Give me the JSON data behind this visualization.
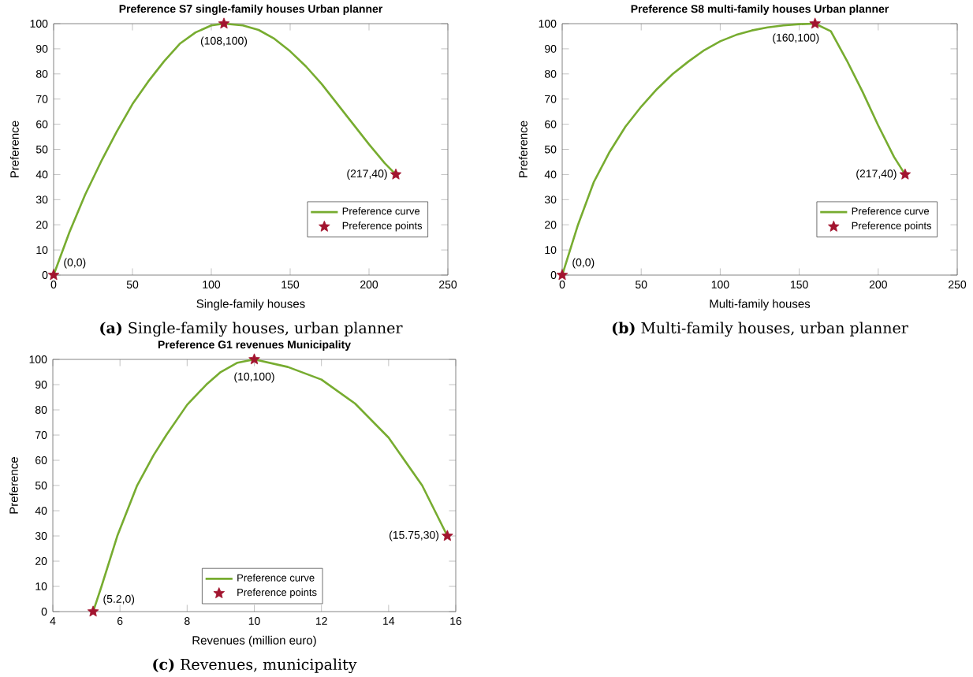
{
  "chart_data": [
    {
      "type": "line",
      "title": "Preference S7 single-family houses Urban planner",
      "xlabel": "Single-family houses",
      "ylabel": "Preference",
      "xlim": [
        0,
        250
      ],
      "ylim": [
        0,
        100
      ],
      "xticks": [
        0,
        50,
        100,
        150,
        200,
        250
      ],
      "yticks": [
        0,
        10,
        20,
        30,
        40,
        50,
        60,
        70,
        80,
        90,
        100
      ],
      "legend": "bottom right",
      "grid": false,
      "series": [
        {
          "name": "Preference curve",
          "type": "line",
          "color": "#77ac30",
          "marker": "none",
          "line_style": "solid",
          "x": [
            0,
            10,
            20,
            30,
            40,
            50,
            60,
            70,
            80,
            90,
            100,
            108,
            120,
            130,
            140,
            150,
            160,
            170,
            180,
            190,
            200,
            210,
            217
          ],
          "values": [
            0,
            17,
            32,
            45,
            57,
            68,
            77,
            85,
            92,
            96.5,
            99.3,
            100,
            99.3,
            97.5,
            94,
            89,
            83,
            76,
            68,
            60,
            52,
            44.5,
            40
          ]
        },
        {
          "name": "Preference points",
          "type": "scatter",
          "color": "#a2142f",
          "marker": "star",
          "x": [
            0,
            108,
            217
          ],
          "values": [
            0,
            100,
            40
          ]
        }
      ],
      "annotations": [
        {
          "text": "(0,0)",
          "x": 0,
          "y": 0
        },
        {
          "text": "(108,100)",
          "x": 108,
          "y": 100
        },
        {
          "text": "(217,40)",
          "x": 217,
          "y": 40
        },
        "**(a)** Single-family houses, urban planner"
      ]
    },
    {
      "type": "line",
      "title": "Preference S8 multi-family houses Urban planner",
      "xlabel": "Multi-family houses",
      "ylabel": "Preference",
      "xlim": [
        0,
        250
      ],
      "ylim": [
        0,
        100
      ],
      "xticks": [
        0,
        50,
        100,
        150,
        200,
        250
      ],
      "yticks": [
        0,
        10,
        20,
        30,
        40,
        50,
        60,
        70,
        80,
        90,
        100
      ],
      "legend": "bottom right",
      "grid": false,
      "series": [
        {
          "name": "Preference curve",
          "type": "line",
          "color": "#77ac30",
          "marker": "none",
          "line_style": "solid",
          "x": [
            0,
            10,
            20,
            30,
            40,
            50,
            60,
            70,
            80,
            90,
            100,
            110,
            120,
            130,
            140,
            150,
            160,
            170,
            180,
            190,
            200,
            210,
            217
          ],
          "values": [
            0,
            20,
            37,
            49,
            59,
            67,
            74,
            80,
            85,
            89.5,
            93,
            95.5,
            97.3,
            98.5,
            99.3,
            99.8,
            100,
            97,
            85.5,
            73,
            59.5,
            47,
            40
          ]
        },
        {
          "name": "Preference points",
          "type": "scatter",
          "color": "#a2142f",
          "marker": "star",
          "x": [
            0,
            160,
            217
          ],
          "values": [
            0,
            100,
            40
          ]
        }
      ],
      "annotations": [
        {
          "text": "(0,0)",
          "x": 0,
          "y": 0
        },
        {
          "text": "(160,100)",
          "x": 160,
          "y": 100
        },
        {
          "text": "(217,40)",
          "x": 217,
          "y": 40
        },
        "**(b)** Multi-family houses, urban planner"
      ]
    },
    {
      "type": "line",
      "title": "Preference G1 revenues Municipality",
      "xlabel": "Revenues (million euro)",
      "ylabel": "Preference",
      "xlim": [
        4,
        16
      ],
      "ylim": [
        0,
        100
      ],
      "xticks": [
        4,
        6,
        8,
        10,
        12,
        14,
        16
      ],
      "yticks": [
        0,
        10,
        20,
        30,
        40,
        50,
        60,
        70,
        80,
        90,
        100
      ],
      "legend": "bottom",
      "grid": false,
      "series": [
        {
          "name": "Preference curve",
          "type": "line",
          "color": "#77ac30",
          "marker": "none",
          "line_style": "solid",
          "x": [
            5.2,
            5.45,
            5.92,
            6.51,
            7,
            7.38,
            8,
            8.57,
            9,
            9.5,
            10,
            11,
            12,
            13,
            14,
            15,
            15.75
          ],
          "values": [
            0,
            10,
            30,
            50,
            62,
            70,
            82,
            90,
            95,
            98.7,
            100,
            97,
            92,
            82.5,
            69,
            50,
            30
          ]
        },
        {
          "name": "Preference points",
          "type": "scatter",
          "color": "#a2142f",
          "marker": "star",
          "x": [
            5.2,
            10,
            15.75
          ],
          "values": [
            0,
            100,
            30
          ]
        }
      ],
      "annotations": [
        {
          "text": "(5.2,0)",
          "x": 5.2,
          "y": 0
        },
        {
          "text": "(10,100)",
          "x": 10,
          "y": 100
        },
        {
          "text": "(15.75,30)",
          "x": 15.75,
          "y": 30
        },
        "**(c)** Revenues, municipality"
      ]
    }
  ]
}
